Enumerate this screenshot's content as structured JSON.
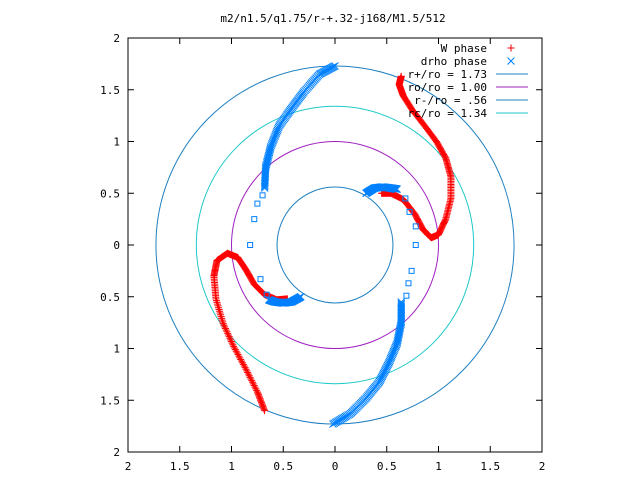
{
  "chart_data": {
    "type": "scatter",
    "title": "m2/n1.5/q1.75/r-+.32-j168/M1.5/512",
    "xlim": [
      -2,
      2
    ],
    "ylim": [
      -2,
      2
    ],
    "x_tick_values": [
      -2,
      -1.5,
      -1,
      -0.5,
      0,
      0.5,
      1,
      1.5,
      2
    ],
    "x_tick_labels": [
      "2",
      "1.5",
      "1",
      "0.5",
      "0",
      "0.5",
      "1",
      "1.5",
      "2"
    ],
    "y_tick_values": [
      2,
      1.5,
      1,
      0.5,
      0,
      -0.5,
      -1,
      -1.5,
      -2
    ],
    "y_tick_labels": [
      "2",
      "1.5",
      "1",
      "0.5",
      "0",
      "0.5",
      "1",
      "1.5",
      "2"
    ],
    "grid": false,
    "legend_position": "top-right",
    "series": [
      {
        "name": "W phase",
        "marker": "plus",
        "color": "#ff0000",
        "arms": [
          [
            [
              0.64,
              1.63
            ],
            [
              0.62,
              1.55
            ],
            [
              0.66,
              1.44
            ],
            [
              0.75,
              1.3
            ],
            [
              0.86,
              1.16
            ],
            [
              0.98,
              1.0
            ],
            [
              1.07,
              0.84
            ],
            [
              1.12,
              0.66
            ],
            [
              1.12,
              0.45
            ],
            [
              1.07,
              0.25
            ],
            [
              1.0,
              0.1
            ],
            [
              0.93,
              0.07
            ],
            [
              0.85,
              0.15
            ],
            [
              0.77,
              0.3
            ],
            [
              0.66,
              0.44
            ],
            [
              0.54,
              0.5
            ],
            [
              0.45,
              0.5
            ]
          ],
          [
            [
              -0.68,
              -1.6
            ],
            [
              -0.75,
              -1.42
            ],
            [
              -0.86,
              -1.2
            ],
            [
              -0.98,
              -0.98
            ],
            [
              -1.08,
              -0.76
            ],
            [
              -1.15,
              -0.52
            ],
            [
              -1.17,
              -0.3
            ],
            [
              -1.14,
              -0.15
            ],
            [
              -1.04,
              -0.08
            ],
            [
              -0.94,
              -0.12
            ],
            [
              -0.86,
              -0.24
            ],
            [
              -0.78,
              -0.38
            ],
            [
              -0.68,
              -0.48
            ],
            [
              -0.56,
              -0.53
            ],
            [
              -0.46,
              -0.52
            ]
          ]
        ]
      },
      {
        "name": "drho phase",
        "marker": "cross",
        "color": "#0080ff",
        "arms": [
          [
            [
              0.0,
              1.73
            ],
            [
              -0.15,
              1.65
            ],
            [
              -0.3,
              1.48
            ],
            [
              -0.42,
              1.32
            ],
            [
              -0.54,
              1.15
            ],
            [
              -0.62,
              0.95
            ],
            [
              -0.67,
              0.75
            ],
            [
              -0.68,
              0.55
            ]
          ],
          [
            [
              0.3,
              0.5
            ],
            [
              0.38,
              0.55
            ],
            [
              0.46,
              0.56
            ],
            [
              0.54,
              0.55
            ],
            [
              0.6,
              0.54
            ]
          ],
          [
            [
              -0.02,
              -1.73
            ],
            [
              0.15,
              -1.63
            ],
            [
              0.3,
              -1.48
            ],
            [
              0.43,
              -1.32
            ],
            [
              0.52,
              -1.14
            ],
            [
              0.6,
              -0.95
            ],
            [
              0.64,
              -0.75
            ],
            [
              0.64,
              -0.55
            ]
          ],
          [
            [
              -0.33,
              -0.5
            ],
            [
              -0.42,
              -0.55
            ],
            [
              -0.5,
              -0.56
            ],
            [
              -0.58,
              -0.55
            ],
            [
              -0.64,
              -0.53
            ]
          ]
        ],
        "scattered": [
          [
            -0.7,
            0.48
          ],
          [
            -0.75,
            0.4
          ],
          [
            -0.78,
            0.25
          ],
          [
            -0.82,
            0.0
          ],
          [
            -0.72,
            -0.33
          ],
          [
            -0.66,
            -0.48
          ],
          [
            0.68,
            0.45
          ],
          [
            0.72,
            0.32
          ],
          [
            0.78,
            0.18
          ],
          [
            0.78,
            0.0
          ],
          [
            0.74,
            -0.25
          ],
          [
            0.71,
            -0.37
          ],
          [
            0.69,
            -0.49
          ]
        ]
      },
      {
        "name": "r+/ro = 1.73",
        "type": "circle",
        "radius": 1.73,
        "color": "#2080c0"
      },
      {
        "name": "ro/ro = 1.00",
        "type": "circle",
        "radius": 1.0,
        "color": "#a020c0"
      },
      {
        "name": "r-/ro = .56",
        "type": "circle",
        "radius": 0.56,
        "color": "#2080c0"
      },
      {
        "name": "rc/ro = 1.34",
        "type": "circle",
        "radius": 1.34,
        "color": "#20c8c8"
      }
    ]
  }
}
